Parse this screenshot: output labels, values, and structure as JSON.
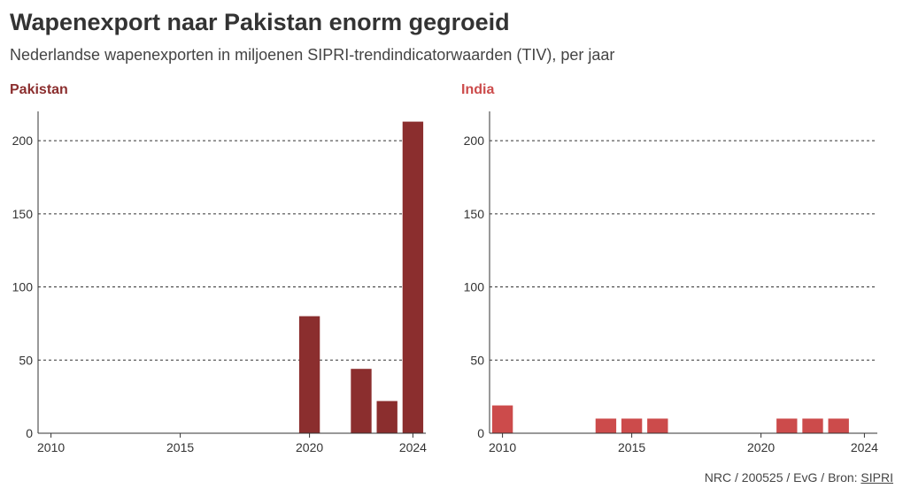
{
  "header": {
    "title": "Wapenexport naar Pakistan enorm gegroeid",
    "subtitle": "Nederlandse wapenexporten in miljoenen SIPRI-trendindicatorwaarden (TIV), per jaar"
  },
  "footer": {
    "credit": "NRC / 200525 / EvG / Bron: ",
    "source_link": "SIPRI"
  },
  "chart_data": [
    {
      "type": "bar",
      "title": "Pakistan",
      "color": "#8b2e2e",
      "x": [
        2020,
        2022,
        2023,
        2024
      ],
      "values": [
        80,
        44,
        22,
        213
      ],
      "xlim": [
        2009.5,
        2024.5
      ],
      "ylim": [
        0,
        220
      ],
      "xticks": [
        2010,
        2015,
        2020,
        2024
      ],
      "yticks": [
        0,
        50,
        100,
        150,
        200
      ],
      "xlabel": "",
      "ylabel": "",
      "grid": "horizontal dashed"
    },
    {
      "type": "bar",
      "title": "India",
      "color": "#cc4b4b",
      "x": [
        2010,
        2014,
        2015,
        2016,
        2021,
        2022,
        2023
      ],
      "values": [
        19,
        10,
        10,
        10,
        10,
        10,
        10
      ],
      "xlim": [
        2009.5,
        2024.5
      ],
      "ylim": [
        0,
        220
      ],
      "xticks": [
        2010,
        2015,
        2020,
        2024
      ],
      "yticks": [
        0,
        50,
        100,
        150,
        200
      ],
      "xlabel": "",
      "ylabel": "",
      "grid": "horizontal dashed"
    }
  ]
}
